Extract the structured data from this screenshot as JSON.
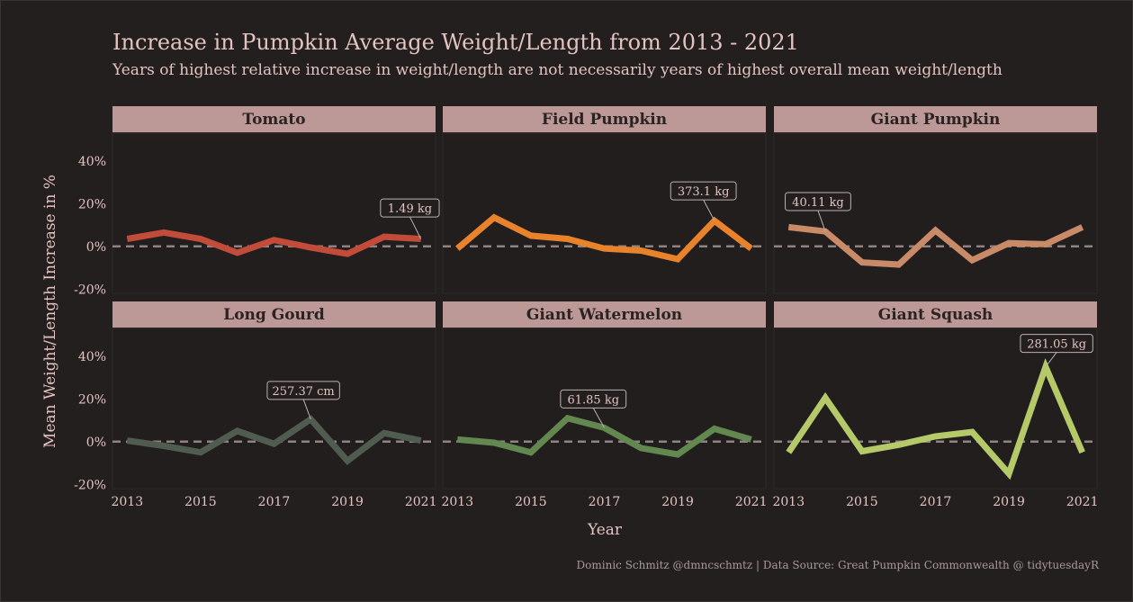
{
  "title": "Increase in Pumpkin Average Weight/Length from 2013 - 2021",
  "subtitle": "Years of highest relative increase in weight/length are not necessarily years of highest overall mean weight/length",
  "caption": "Dominic Schmitz @dmncschmtz  |  Data Source: Great Pumpkin Commonwealth @ tidytuesdayR",
  "colors": {
    "background": "#231f1f",
    "panel_background": "#2a2525",
    "strip_background": "#bc9896",
    "text": "#e3c3c0",
    "reference_line": "#8f8383"
  },
  "chart_data": {
    "type": "line",
    "layout": "facet-grid 2x3",
    "xlabel": "Year",
    "ylabel": "Mean Weight/Length Increase in %",
    "x_ticks": [
      2013,
      2015,
      2017,
      2019,
      2021
    ],
    "y_ticks": [
      -20,
      0,
      20,
      40
    ],
    "y_tick_labels": [
      "-20%",
      "0%",
      "20%",
      "40%"
    ],
    "xlim": [
      2012.6,
      2021.4
    ],
    "ylim": [
      -22,
      53
    ],
    "reference_line_y": 0,
    "x": [
      2013,
      2014,
      2015,
      2016,
      2017,
      2018,
      2019,
      2020,
      2021
    ],
    "panels": [
      {
        "name": "Tomato",
        "color": "#c24b3a",
        "values": [
          3.5,
          6.5,
          3.5,
          -3,
          3,
          -0.5,
          -3.5,
          4.5,
          3.5
        ],
        "annotation": {
          "text": "1.49 kg",
          "year": 2021,
          "label_year": 2020.7,
          "label_y": 18
        }
      },
      {
        "name": "Field Pumpkin",
        "color": "#e8822b",
        "values": [
          -1,
          13.5,
          5,
          3.5,
          -1,
          -2,
          -6,
          12,
          -1
        ],
        "annotation": {
          "text": "373.1 kg",
          "year": 2020,
          "label_year": 2019.7,
          "label_y": 26
        }
      },
      {
        "name": "Giant Pumpkin",
        "color": "#c98a68",
        "values": [
          9,
          7,
          -7.5,
          -8.5,
          7.5,
          -6.5,
          1.5,
          1,
          9
        ],
        "annotation": {
          "text": "40.11 kg",
          "year": 2014,
          "label_year": 2013.8,
          "label_y": 21
        }
      },
      {
        "name": "Long Gourd",
        "color": "#515c51",
        "values": [
          0.5,
          -2,
          -5,
          5,
          -1,
          10.5,
          -9,
          4,
          0.5
        ],
        "annotation": {
          "text": "257.37 cm",
          "year": 2018,
          "label_year": 2017.8,
          "label_y": 24
        }
      },
      {
        "name": "Giant Watermelon",
        "color": "#62884f",
        "values": [
          1,
          -0.5,
          -5,
          11,
          6.5,
          -3,
          -6,
          6,
          1
        ],
        "annotation": {
          "text": "61.85 kg",
          "year": 2017,
          "label_year": 2016.7,
          "label_y": 20
        }
      },
      {
        "name": "Giant Squash",
        "color": "#b5c969",
        "values": [
          -5,
          20.5,
          -4.5,
          -1.5,
          2.5,
          4.5,
          -15,
          35,
          -5
        ],
        "annotation": {
          "text": "281.05 kg",
          "year": 2020,
          "label_year": 2020.3,
          "label_y": 46
        }
      }
    ]
  }
}
